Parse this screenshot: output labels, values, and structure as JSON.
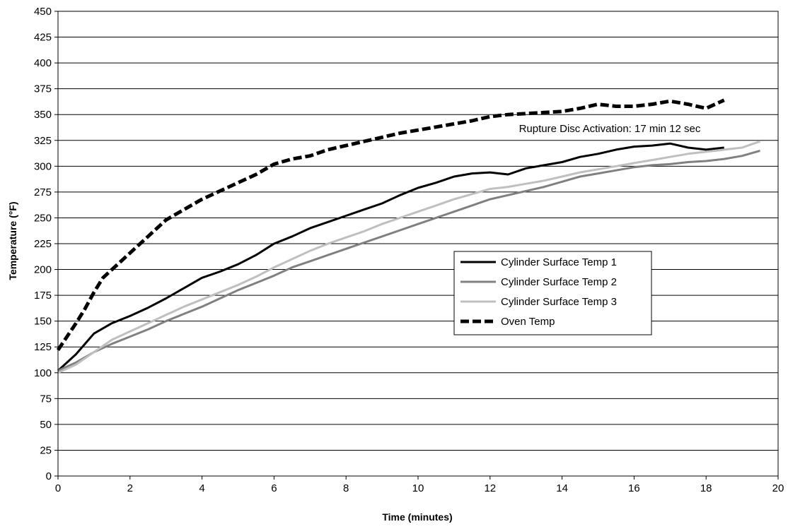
{
  "chart_data": {
    "type": "line",
    "title": "",
    "xlabel": "Time (minutes)",
    "ylabel": "Temperature (°F)",
    "xlim": [
      0,
      20
    ],
    "ylim": [
      0,
      450
    ],
    "x_ticks": [
      0,
      2,
      4,
      6,
      8,
      10,
      12,
      14,
      16,
      18,
      20
    ],
    "y_ticks": [
      0,
      25,
      50,
      75,
      100,
      125,
      150,
      175,
      200,
      225,
      250,
      275,
      300,
      325,
      350,
      375,
      400,
      425,
      450
    ],
    "grid": "horizontal",
    "legend_position": "center-right",
    "annotation": "Rupture Disc Activation: 17 min 12 sec",
    "series": [
      {
        "name": "Cylinder Surface Temp 1",
        "color": "#000000",
        "dash": "solid",
        "x": [
          0,
          0.5,
          1,
          1.5,
          2,
          2.5,
          3,
          3.5,
          4,
          4.5,
          5,
          5.5,
          6,
          6.5,
          7,
          7.5,
          8,
          8.5,
          9,
          9.5,
          10,
          10.5,
          11,
          11.5,
          12,
          12.5,
          13,
          13.5,
          14,
          14.5,
          15,
          15.5,
          16,
          16.5,
          17,
          17.5,
          18,
          18.5
        ],
        "y": [
          102,
          118,
          138,
          148,
          155,
          163,
          172,
          182,
          192,
          198,
          205,
          214,
          225,
          232,
          240,
          246,
          252,
          258,
          264,
          272,
          279,
          284,
          290,
          293,
          294,
          292,
          298,
          301,
          304,
          309,
          312,
          316,
          319,
          320,
          322,
          318,
          316,
          318
        ]
      },
      {
        "name": "Cylinder Surface Temp 2",
        "color": "#808080",
        "dash": "solid",
        "x": [
          0,
          0.5,
          1,
          1.5,
          2,
          2.5,
          3,
          3.5,
          4,
          4.5,
          5,
          5.5,
          6,
          6.5,
          7,
          7.5,
          8,
          8.5,
          9,
          9.5,
          10,
          10.5,
          11,
          11.5,
          12,
          12.5,
          13,
          13.5,
          14,
          14.5,
          15,
          15.5,
          16,
          16.5,
          17,
          17.5,
          18,
          18.5,
          19,
          19.5
        ],
        "y": [
          102,
          110,
          120,
          128,
          135,
          142,
          150,
          157,
          164,
          172,
          180,
          187,
          194,
          202,
          208,
          214,
          220,
          226,
          232,
          238,
          244,
          250,
          256,
          262,
          268,
          272,
          276,
          280,
          285,
          290,
          293,
          296,
          299,
          301,
          302,
          304,
          305,
          307,
          310,
          315
        ]
      },
      {
        "name": "Cylinder Surface Temp 3",
        "color": "#bfbfbf",
        "dash": "solid",
        "x": [
          0,
          0.5,
          1,
          1.5,
          2,
          2.5,
          3,
          3.5,
          4,
          4.5,
          5,
          5.5,
          6,
          6.5,
          7,
          7.5,
          8,
          8.5,
          9,
          9.5,
          10,
          10.5,
          11,
          11.5,
          12,
          12.5,
          13,
          13.5,
          14,
          14.5,
          15,
          15.5,
          16,
          16.5,
          17,
          17.5,
          18,
          18.5,
          19,
          19.5
        ],
        "y": [
          100,
          108,
          120,
          132,
          140,
          148,
          156,
          164,
          171,
          178,
          185,
          193,
          202,
          210,
          218,
          225,
          231,
          237,
          244,
          250,
          256,
          262,
          268,
          273,
          278,
          280,
          283,
          286,
          290,
          294,
          297,
          300,
          303,
          306,
          309,
          312,
          314,
          316,
          318,
          324
        ]
      },
      {
        "name": "Oven Temp",
        "color": "#000000",
        "dash": "dashed",
        "x": [
          0,
          0.25,
          0.5,
          0.75,
          1,
          1.25,
          1.5,
          1.75,
          2,
          2.5,
          3,
          3.5,
          4,
          4.5,
          5,
          5.5,
          6,
          6.5,
          7,
          7.5,
          8,
          8.5,
          9,
          9.5,
          10,
          10.5,
          11,
          11.5,
          12,
          12.5,
          13,
          13.5,
          14,
          14.5,
          15,
          15.5,
          16,
          16.5,
          17,
          17.5,
          18,
          18.5
        ],
        "y": [
          122,
          135,
          148,
          162,
          178,
          192,
          200,
          208,
          216,
          232,
          248,
          258,
          268,
          276,
          284,
          292,
          302,
          307,
          310,
          316,
          320,
          324,
          328,
          332,
          335,
          338,
          341,
          344,
          348,
          350,
          351,
          352,
          353,
          356,
          360,
          358,
          358,
          360,
          363,
          360,
          356,
          364
        ]
      }
    ]
  }
}
